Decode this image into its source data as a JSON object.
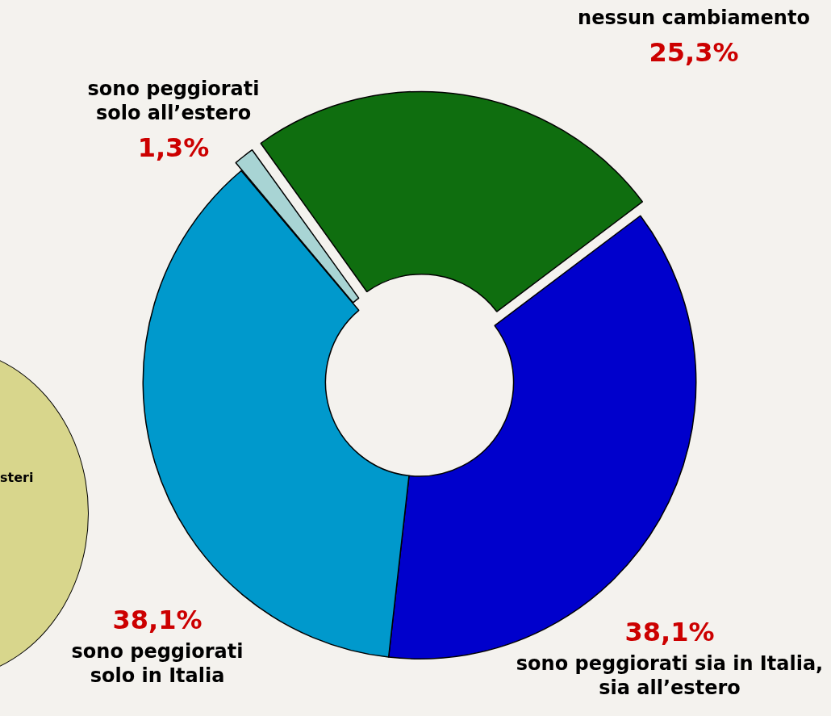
{
  "chart_data": {
    "type": "donut",
    "categories": [
      "sono peggiorati sia in Italia, sia all’estero",
      "sono peggiorati solo in Italia",
      "sono peggiorati solo all’estero",
      "nessun cambiamento"
    ],
    "values": [
      38.1,
      38.1,
      1.3,
      25.3
    ],
    "value_labels": [
      "38,1%",
      "38,1%",
      "1,3%",
      "25,3%"
    ],
    "colors": [
      "#0000cc",
      "#0099cc",
      "#a8d4d4",
      "#0f6e0f"
    ],
    "annotations": [
      "steri"
    ],
    "legend": false
  }
}
